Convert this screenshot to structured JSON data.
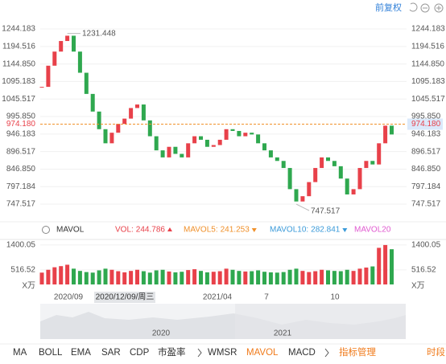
{
  "header": {
    "adjust": "前复权"
  },
  "chart_data": [
    {
      "type": "candlestick",
      "values": [
        1080,
        1140,
        1180,
        1210,
        1225,
        1180,
        1120,
        1060,
        1010,
        960,
        920,
        950,
        975,
        990,
        1020,
        1030,
        985,
        940,
        900,
        880,
        910,
        890,
        880,
        920,
        940,
        930,
        910,
        915,
        930,
        960,
        955,
        940,
        950,
        945,
        920,
        900,
        880,
        870,
        850,
        790,
        755,
        770,
        810,
        850,
        880,
        870,
        855,
        820,
        775,
        790,
        850,
        870,
        860,
        920,
        970,
        945
      ],
      "up_color": "#e8414a",
      "down_color": "#2fa84f",
      "ylim": [
        700,
        1270
      ],
      "yticks": [
        1244.183,
        1194.516,
        {
          "value": 1144.85,
          "label": "1144.850"
        },
        1095.183,
        1045.517,
        {
          "value": 995.85,
          "label": "995.850"
        },
        946.183,
        896.517,
        {
          "value": 846.85,
          "label": "846.850"
        },
        797.184,
        747.517
      ],
      "current_price": {
        "value": 974.18,
        "label": "974.180"
      },
      "high_label": 1231.448,
      "low_label": 747.517,
      "grid": true
    },
    {
      "type": "bar",
      "values": [
        420,
        520,
        610,
        650,
        700,
        560,
        480,
        440,
        420,
        500,
        560,
        520,
        470,
        430,
        480,
        520,
        470,
        420,
        500,
        520,
        460,
        430,
        450,
        510,
        540,
        480,
        430,
        450,
        470,
        560,
        520,
        480,
        460,
        470,
        500,
        450,
        430,
        420,
        440,
        520,
        560,
        480,
        440,
        470,
        520,
        500,
        480,
        470,
        520,
        480,
        560,
        600,
        640,
        1300,
        1400,
        1250
      ],
      "ylim": [
        0,
        1500
      ],
      "yticks": [
        1400.05,
        516.52
      ],
      "unit": "X万",
      "indicator_title": "MAVOL",
      "indicators": [
        {
          "name": "VOL:",
          "value": 244.786,
          "color": "#e8414a",
          "trend": "up"
        },
        {
          "name": "MAVOL5:",
          "value": 241.253,
          "color": "#f0902a",
          "trend": "down"
        },
        {
          "name": "MAVOL10:",
          "value": 282.841,
          "color": "#3a9ad9",
          "trend": "down"
        },
        {
          "name": "MAVOL20",
          "color": "#e05ad0"
        }
      ]
    }
  ],
  "x_labels": [
    "2020/09",
    "2020/12/09/周三",
    "2021/04",
    "7",
    "10"
  ],
  "navigator_years": [
    "2020",
    "2021"
  ],
  "tabs": [
    "MA",
    "BOLL",
    "EMA",
    "SAR",
    "CDP",
    "市盈率",
    "WMSR",
    "MAVOL",
    "MACD",
    "指标管理",
    "时段"
  ]
}
